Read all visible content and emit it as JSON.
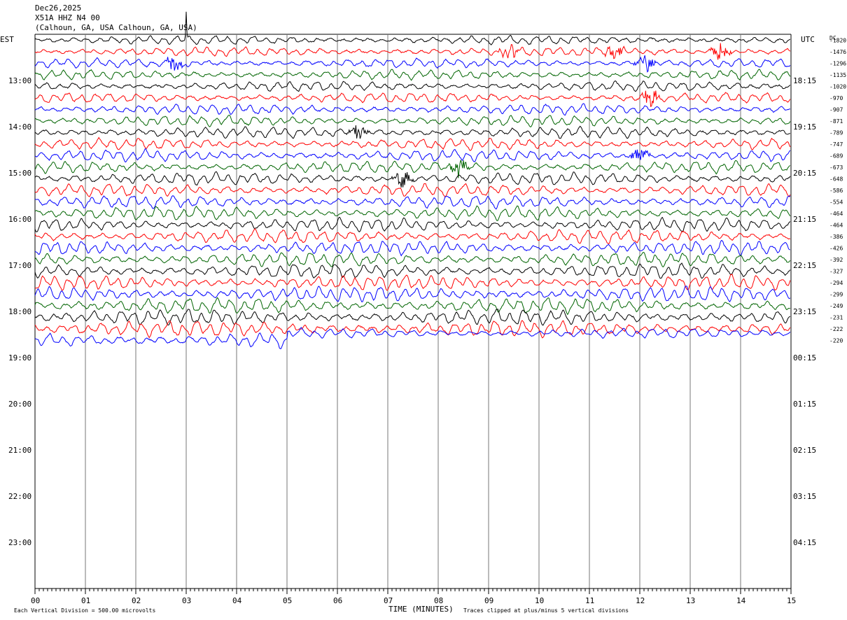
{
  "header": {
    "date": "Dec26,2025",
    "station": "X51A HHZ N4 00",
    "location": "(Calhoun, GA, USA Calhoun, GA, USA)"
  },
  "left_axis_label": "EST",
  "right_axis_label": "UTC",
  "dc_label": "DC",
  "x_axis_label": "TIME (MINUTES)",
  "footer": {
    "scale_note": "Each Vertical Division =  500.00 microvolts",
    "clip_note": "Traces clipped at plus/minus 5 vertical divisions"
  },
  "chart_data": {
    "type": "line",
    "xlabel": "TIME (MINUTES)",
    "xlim": [
      0,
      15
    ],
    "x_ticks": [
      "00",
      "01",
      "02",
      "03",
      "04",
      "05",
      "06",
      "07",
      "08",
      "09",
      "10",
      "11",
      "12",
      "13",
      "14",
      "15"
    ],
    "left_hour_labels": [
      "13:00",
      "14:00",
      "15:00",
      "16:00",
      "17:00",
      "18:00",
      "19:00",
      "20:00",
      "21:00",
      "22:00",
      "23:00"
    ],
    "right_hour_labels": [
      "18:15",
      "19:15",
      "20:15",
      "21:15",
      "22:15",
      "23:15",
      "00:15",
      "01:15",
      "02:15",
      "03:15",
      "04:15"
    ],
    "traces_per_hour": 4,
    "trace_minutes": 15,
    "first_trace_start": "12:00",
    "recorded_traces": 27,
    "total_trace_rows": 48,
    "trace_colors": [
      "#000000",
      "#ff0000",
      "#0000ff",
      "#006400"
    ],
    "dc_offsets": [
      "-1820",
      "-1476",
      "-1296",
      "-1135",
      "-1020",
      "-970",
      "-907",
      "-871",
      "-789",
      "-747",
      "-689",
      "-673",
      "-648",
      "-586",
      "-554",
      "-464",
      "-464",
      "-386",
      "-426",
      "-392",
      "-327",
      "-294",
      "-299",
      "-249",
      "-231",
      "-222",
      "-220"
    ],
    "events": [
      {
        "trace": 0,
        "minute": 3.0,
        "note": "spike"
      },
      {
        "trace": 1,
        "minute": 9.4,
        "note": "burst"
      },
      {
        "trace": 1,
        "minute": 11.5,
        "note": "burst"
      },
      {
        "trace": 1,
        "minute": 13.6,
        "note": "burst"
      },
      {
        "trace": 2,
        "minute": 2.8,
        "note": "burst"
      },
      {
        "trace": 2,
        "minute": 12.1,
        "note": "burst"
      },
      {
        "trace": 5,
        "minute": 12.2,
        "note": "burst"
      },
      {
        "trace": 8,
        "minute": 6.4,
        "note": "burst"
      },
      {
        "trace": 10,
        "minute": 12.0,
        "note": "burst"
      },
      {
        "trace": 11,
        "minute": 8.4,
        "note": "burst"
      },
      {
        "trace": 12,
        "minute": 7.3,
        "note": "burst"
      }
    ]
  }
}
